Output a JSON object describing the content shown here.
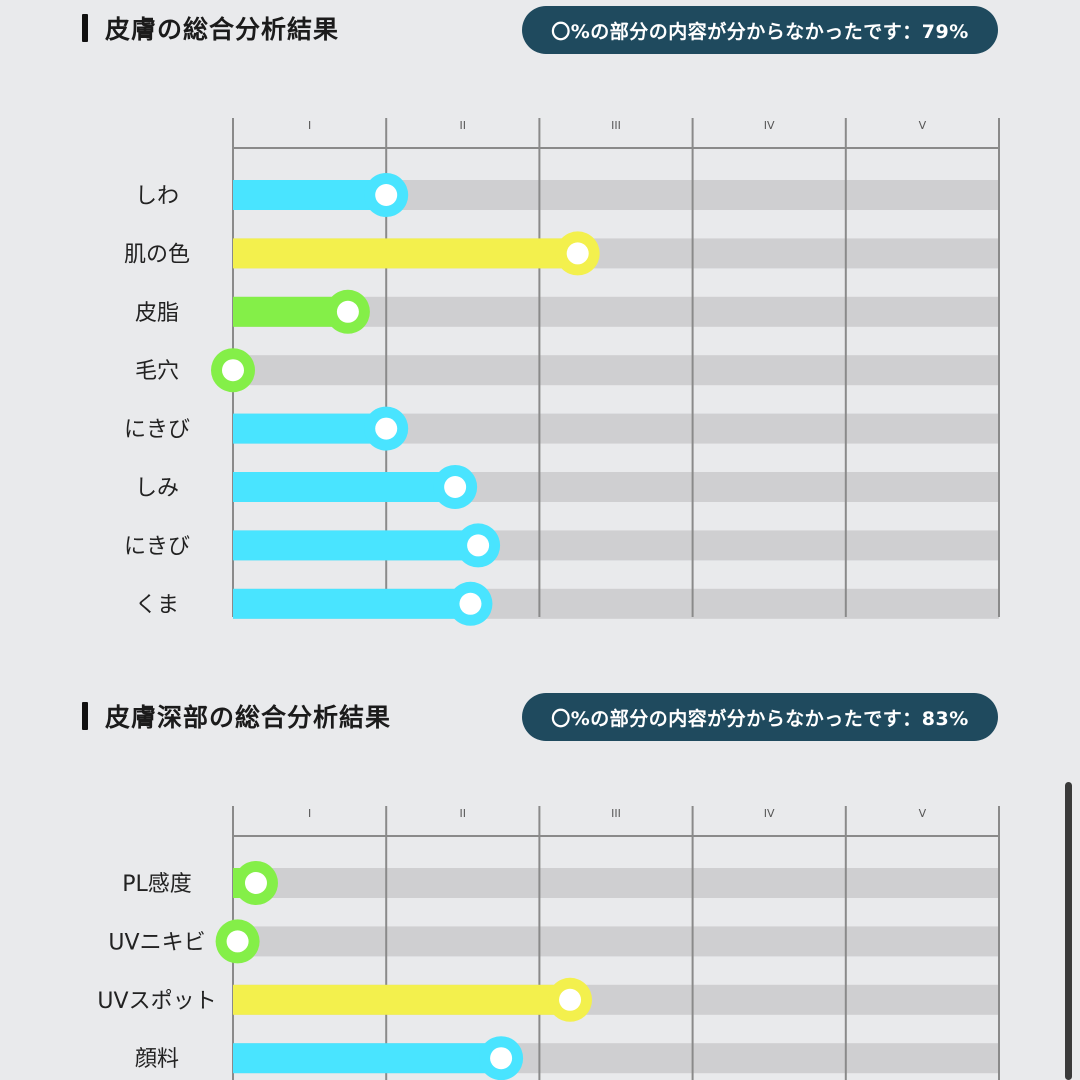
{
  "sections": [
    {
      "title": "皮膚の総合分析結果",
      "badge": "〇%の部分の内容が分からなかったです：79%"
    },
    {
      "title": "皮膚深部の総合分析結果",
      "badge": "〇%の部分の内容が分からなかったです：83%"
    }
  ],
  "colors": {
    "cyan": "#49e4ff",
    "yellow": "#f3f04d",
    "green": "#84ef48",
    "track": "#cfcfd1",
    "badge_bg": "#1f4a5e",
    "background": "#e9eaec"
  },
  "chart_data": [
    {
      "type": "bar",
      "orientation": "horizontal",
      "categories": [
        "しわ",
        "肌の色",
        "皮脂",
        "毛穴",
        "にきび",
        "しみ",
        "にきび",
        "くま"
      ],
      "values": [
        1.0,
        2.25,
        0.75,
        0.0,
        1.0,
        1.45,
        1.6,
        1.55
      ],
      "colors": [
        "#49e4ff",
        "#f3f04d",
        "#84ef48",
        "#84ef48",
        "#49e4ff",
        "#49e4ff",
        "#49e4ff",
        "#49e4ff"
      ],
      "x_tick_labels": [
        "I",
        "II",
        "III",
        "IV",
        "V"
      ],
      "xlim": [
        0,
        5
      ],
      "grid": true
    },
    {
      "type": "bar",
      "orientation": "horizontal",
      "categories": [
        "PL感度",
        "UVニキビ",
        "UVスポット",
        "顔料"
      ],
      "values": [
        0.15,
        0.03,
        2.2,
        1.75
      ],
      "colors": [
        "#84ef48",
        "#84ef48",
        "#f3f04d",
        "#49e4ff"
      ],
      "x_tick_labels": [
        "I",
        "II",
        "III",
        "IV",
        "V"
      ],
      "xlim": [
        0,
        5
      ],
      "grid": true
    }
  ]
}
